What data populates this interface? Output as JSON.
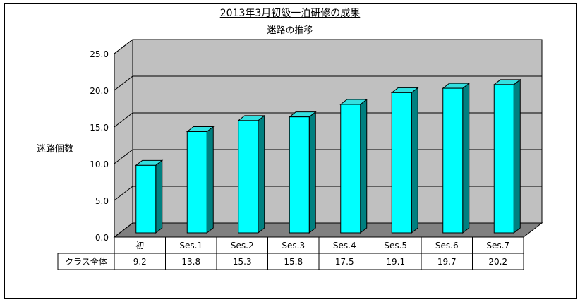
{
  "chart_data": {
    "type": "bar",
    "title": "2013年3月初級一泊研修の成果",
    "subtitle": "迷路の推移",
    "xlabel": "",
    "ylabel": "迷路個数",
    "categories": [
      "初",
      "Ses.1",
      "Ses.2",
      "Ses.3",
      "Ses.4",
      "Ses.5",
      "Ses.6",
      "Ses.7"
    ],
    "series": [
      {
        "name": "クラス全体",
        "values": [
          9.2,
          13.8,
          15.3,
          15.8,
          17.5,
          19.1,
          19.7,
          20.2
        ]
      }
    ],
    "ylim": [
      0,
      25
    ],
    "yticks": [
      "0.0",
      "5.0",
      "10.0",
      "15.0",
      "20.0",
      "25.0"
    ],
    "data_table": true,
    "grid": true,
    "colors": {
      "bar_front": "#00ffff",
      "bar_side": "#008080",
      "bar_top": "#33e0e0",
      "wall": "#c0c0c0",
      "floor": "#808080"
    }
  }
}
